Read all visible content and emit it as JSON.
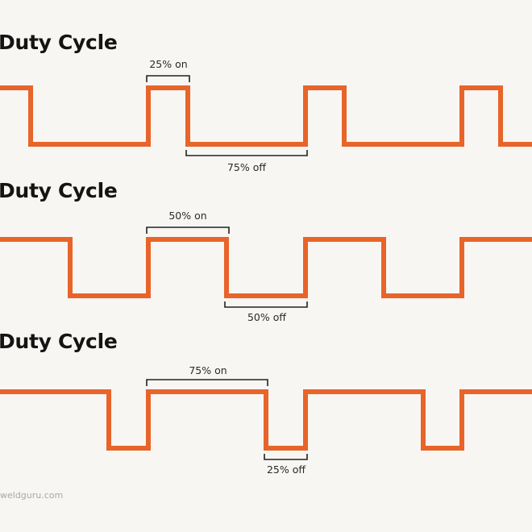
{
  "accent_color": "#e8642a",
  "bracket_color": "#222222",
  "panels": [
    {
      "title": "Duty Cycle",
      "on_label": "25% on",
      "off_label": "75% off",
      "duty": 0.25
    },
    {
      "title": "Duty Cycle",
      "on_label": "50% on",
      "off_label": "50% off",
      "duty": 0.5
    },
    {
      "title": "Duty Cycle",
      "on_label": "75% on",
      "off_label": "25% off",
      "duty": 0.75
    }
  ],
  "watermark": "weldguru.com"
}
